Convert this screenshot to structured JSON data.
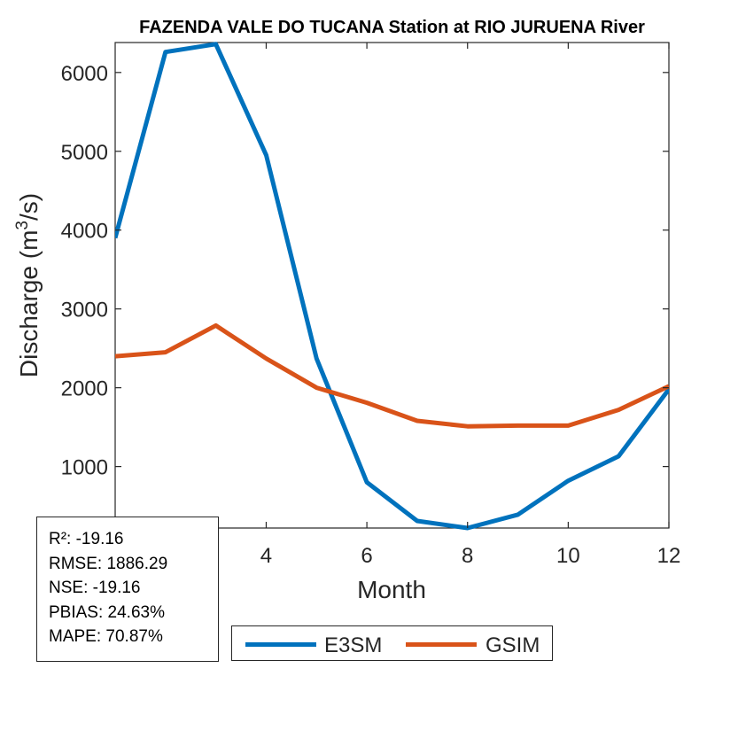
{
  "chart_data": {
    "type": "line",
    "title": "FAZENDA VALE DO TUCANA  Station at  RIO JURUENA  River",
    "xlabel": "Month",
    "ylabel": "Discharge (m",
    "ylabel_sup": "3",
    "ylabel_tail": "/s)",
    "xlim": [
      1,
      12
    ],
    "ylim": [
      220,
      6380
    ],
    "xticks": [
      4,
      6,
      8,
      10,
      12
    ],
    "yticks": [
      1000,
      2000,
      3000,
      4000,
      5000,
      6000
    ],
    "grid": false,
    "legend_position": "bottom",
    "x": [
      1,
      2,
      3,
      4,
      5,
      6,
      7,
      8,
      9,
      10,
      11,
      12
    ],
    "series": [
      {
        "name": "E3SM",
        "color": "#0072BD",
        "values": [
          3900,
          6260,
          6360,
          4950,
          2370,
          800,
          310,
          220,
          390,
          820,
          1130,
          1980
        ]
      },
      {
        "name": "GSIM",
        "color": "#D95319",
        "values": [
          2400,
          2450,
          2790,
          2370,
          2000,
          1810,
          1580,
          1510,
          1520,
          1520,
          1720,
          2020
        ]
      }
    ]
  },
  "stats": {
    "r2": "R²: -19.16",
    "rmse": "RMSE: 1886.29",
    "nse": "NSE: -19.16",
    "pbias": "PBIAS: 24.63%",
    "mape": "MAPE: 70.87%"
  },
  "legend": {
    "e3sm_label": "E3SM",
    "gsim_label": "GSIM",
    "e3sm_color": "#0072BD",
    "gsim_color": "#D95319"
  }
}
